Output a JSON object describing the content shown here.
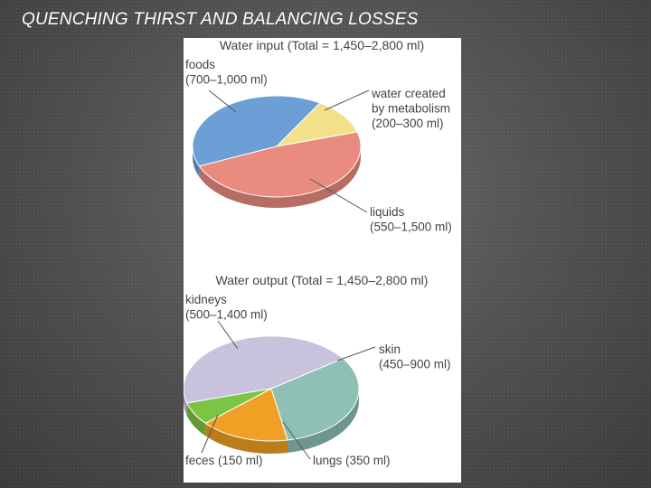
{
  "slide": {
    "title": "QUENCHING THIRST AND BALANCING LOSSES"
  },
  "colors": {
    "foods": "#6c9fd6",
    "metabolism": "#f2e08a",
    "liquids": "#ea8b80",
    "kidneys": "#c9c2dc",
    "skin": "#8ec0b6",
    "lungs": "#f0a024",
    "feces": "#7cc444"
  },
  "chart_data": [
    {
      "type": "pie",
      "title": "Water input (Total = 1,450–2,800 ml)",
      "slices": [
        {
          "key": "foods",
          "label_lines": [
            "foods",
            "(700–1,000 ml)"
          ],
          "range_ml": [
            700,
            1000
          ],
          "value": 850,
          "color": "#6c9fd6"
        },
        {
          "key": "metabolism",
          "label_lines": [
            "water created",
            "by metabolism",
            "(200–300 ml)"
          ],
          "range_ml": [
            200,
            300
          ],
          "value": 250,
          "color": "#f2e08a"
        },
        {
          "key": "liquids",
          "label_lines": [
            "liquids",
            "(550–1,500 ml)"
          ],
          "range_ml": [
            550,
            1500
          ],
          "value": 1025,
          "color": "#ea8b80"
        }
      ]
    },
    {
      "type": "pie",
      "title": "Water output (Total = 1,450–2,800 ml)",
      "slices": [
        {
          "key": "kidneys",
          "label_lines": [
            "kidneys",
            "(500–1,400 ml)"
          ],
          "range_ml": [
            500,
            1400
          ],
          "value": 950,
          "color": "#c9c2dc"
        },
        {
          "key": "skin",
          "label_lines": [
            "skin",
            "(450–900 ml)"
          ],
          "range_ml": [
            450,
            900
          ],
          "value": 675,
          "color": "#8ec0b6"
        },
        {
          "key": "lungs",
          "label_lines": [
            "lungs (350 ml)"
          ],
          "range_ml": [
            350,
            350
          ],
          "value": 350,
          "color": "#f0a024"
        },
        {
          "key": "feces",
          "label_lines": [
            "feces (150 ml)"
          ],
          "range_ml": [
            150,
            150
          ],
          "value": 150,
          "color": "#7cc444"
        }
      ]
    }
  ]
}
